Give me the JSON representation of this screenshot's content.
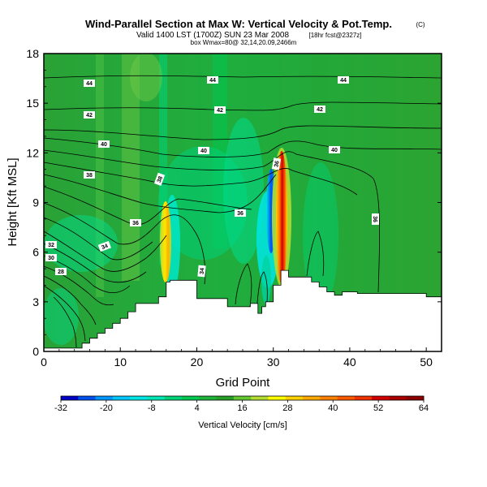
{
  "chart_data": {
    "type": "heatmap",
    "title": "Wind-Parallel Section at Max W: Vertical Velocity & Pot.Temp.",
    "title_mark": "(C)",
    "subtitle": "Valid 1400 LST (1700Z) SUN 23 Mar 2008",
    "subtitle_suffix": "[18hr fcst@2327z]",
    "subtitle2": "box Wmax=80@ 32,14,20.09,2466m",
    "xlabel": "Grid Point",
    "ylabel": "Height [Kft MSL]",
    "xlim": [
      0,
      52
    ],
    "ylim": [
      0,
      18
    ],
    "x_ticks": [
      "0",
      "10",
      "20",
      "30",
      "40",
      "50"
    ],
    "y_ticks": [
      "0",
      "3",
      "6",
      "9",
      "12",
      "15",
      "18"
    ],
    "colorbar": {
      "label": "Vertical Velocity [cm/s]",
      "ticks": [
        "-32",
        "-20",
        "-8",
        "4",
        "16",
        "28",
        "40",
        "52",
        "64"
      ],
      "range": [
        -32,
        64
      ],
      "colors": [
        "#0000c8",
        "#0050f0",
        "#0096ff",
        "#00c8ff",
        "#00e6e6",
        "#00e6b4",
        "#00d278",
        "#00c850",
        "#1eb43c",
        "#28a028",
        "#64c832",
        "#b4dc32",
        "#ffff00",
        "#ffd200",
        "#ffaa00",
        "#ff8200",
        "#ff5a00",
        "#f03200",
        "#d20000",
        "#aa0000",
        "#8c0000"
      ]
    },
    "contour_labels": [
      "44",
      "44",
      "44",
      "42",
      "42",
      "42",
      "40",
      "40",
      "40",
      "38",
      "38",
      "36",
      "36",
      "36",
      "34",
      "34",
      "32",
      "30",
      "28",
      "36"
    ],
    "terrain": {
      "x": [
        0,
        5,
        5,
        6,
        6,
        7,
        7,
        8,
        8,
        9,
        9,
        10,
        10,
        11,
        11,
        12,
        12,
        15,
        15,
        16,
        16,
        16.5,
        16.5,
        20,
        20,
        24,
        24,
        27,
        27,
        28,
        28,
        28.5,
        28.5,
        29,
        29,
        30,
        30,
        31,
        31,
        32,
        32,
        35,
        35,
        36,
        36,
        37,
        37,
        38,
        38,
        39,
        39,
        41,
        41,
        50,
        50,
        52
      ],
      "height": [
        0.2,
        0.2,
        0.5,
        0.5,
        0.8,
        0.8,
        1.1,
        1.1,
        1.4,
        1.4,
        1.7,
        1.7,
        2.0,
        2.0,
        2.4,
        2.4,
        2.9,
        2.9,
        3.3,
        3.3,
        4.2,
        4.2,
        4.3,
        4.3,
        3.2,
        3.2,
        2.7,
        2.7,
        2.9,
        2.9,
        2.3,
        2.3,
        2.7,
        2.7,
        3.0,
        3.0,
        4.0,
        4.0,
        4.9,
        4.9,
        4.5,
        4.5,
        4.2,
        4.2,
        3.9,
        3.9,
        3.6,
        3.6,
        3.4,
        3.4,
        3.6,
        3.6,
        3.5,
        3.5,
        3.3,
        3.3
      ]
    }
  }
}
